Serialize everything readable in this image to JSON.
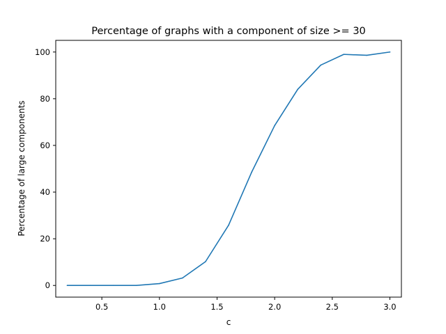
{
  "chart_data": {
    "type": "line",
    "title": "Percentage of graphs with a component of size >= 30",
    "xlabel": "c",
    "ylabel": "Percentage of large components",
    "xlim": [
      0.1,
      3.1
    ],
    "ylim": [
      -5,
      105
    ],
    "xticks": [
      0.5,
      1.0,
      1.5,
      2.0,
      2.5,
      3.0
    ],
    "xtick_labels": [
      "0.5",
      "1.0",
      "1.5",
      "2.0",
      "2.5",
      "3.0"
    ],
    "yticks": [
      0,
      20,
      40,
      60,
      80,
      100
    ],
    "ytick_labels": [
      "0",
      "20",
      "40",
      "60",
      "80",
      "100"
    ],
    "grid": false,
    "series": [
      {
        "color": "#1f77b4",
        "x": [
          0.2,
          0.4,
          0.6,
          0.8,
          1.0,
          1.2,
          1.4,
          1.6,
          1.8,
          2.0,
          2.2,
          2.4,
          2.6,
          2.8,
          3.0
        ],
        "y": [
          0,
          0,
          0,
          0,
          0.8,
          3.2,
          10.2,
          25.8,
          48.5,
          68.5,
          84,
          94.4,
          99,
          98.6,
          100
        ]
      }
    ]
  }
}
